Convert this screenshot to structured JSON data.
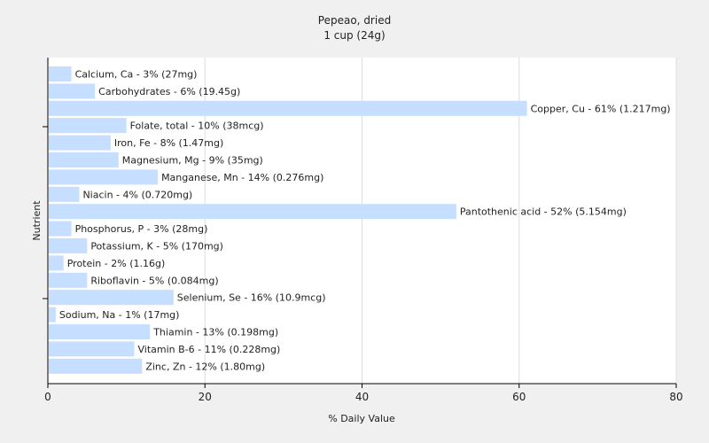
{
  "chart_data": {
    "type": "bar",
    "orientation": "horizontal",
    "title": "Pepeao, dried",
    "subtitle": "1 cup (24g)",
    "xlabel": "% Daily Value",
    "ylabel": "Nutrient",
    "xlim": [
      0,
      80
    ],
    "xticks": [
      0,
      20,
      40,
      60,
      80
    ],
    "grid": true,
    "bar_color": "#c6deff",
    "categories": [
      "Calcium, Ca",
      "Carbohydrates",
      "Copper, Cu",
      "Folate, total",
      "Iron, Fe",
      "Magnesium, Mg",
      "Manganese, Mn",
      "Niacin",
      "Pantothenic acid",
      "Phosphorus, P",
      "Potassium, K",
      "Protein",
      "Riboflavin",
      "Selenium, Se",
      "Sodium, Na",
      "Thiamin",
      "Vitamin B-6",
      "Zinc, Zn"
    ],
    "values": [
      3,
      6,
      61,
      10,
      8,
      9,
      14,
      4,
      52,
      3,
      5,
      2,
      5,
      16,
      1,
      13,
      11,
      12
    ],
    "labels": [
      "Calcium, Ca - 3% (27mg)",
      "Carbohydrates - 6% (19.45g)",
      "Copper, Cu - 61% (1.217mg)",
      "Folate, total - 10% (38mcg)",
      "Iron, Fe - 8% (1.47mg)",
      "Magnesium, Mg - 9% (35mg)",
      "Manganese, Mn - 14% (0.276mg)",
      "Niacin - 4% (0.720mg)",
      "Pantothenic acid - 52% (5.154mg)",
      "Phosphorus, P - 3% (28mg)",
      "Potassium, K - 5% (170mg)",
      "Protein - 2% (1.16g)",
      "Riboflavin - 5% (0.084mg)",
      "Selenium, Se - 16% (10.9mcg)",
      "Sodium, Na - 1% (17mg)",
      "Thiamin - 13% (0.198mg)",
      "Vitamin B-6 - 11% (0.228mg)",
      "Zinc, Zn - 12% (1.80mg)"
    ]
  }
}
